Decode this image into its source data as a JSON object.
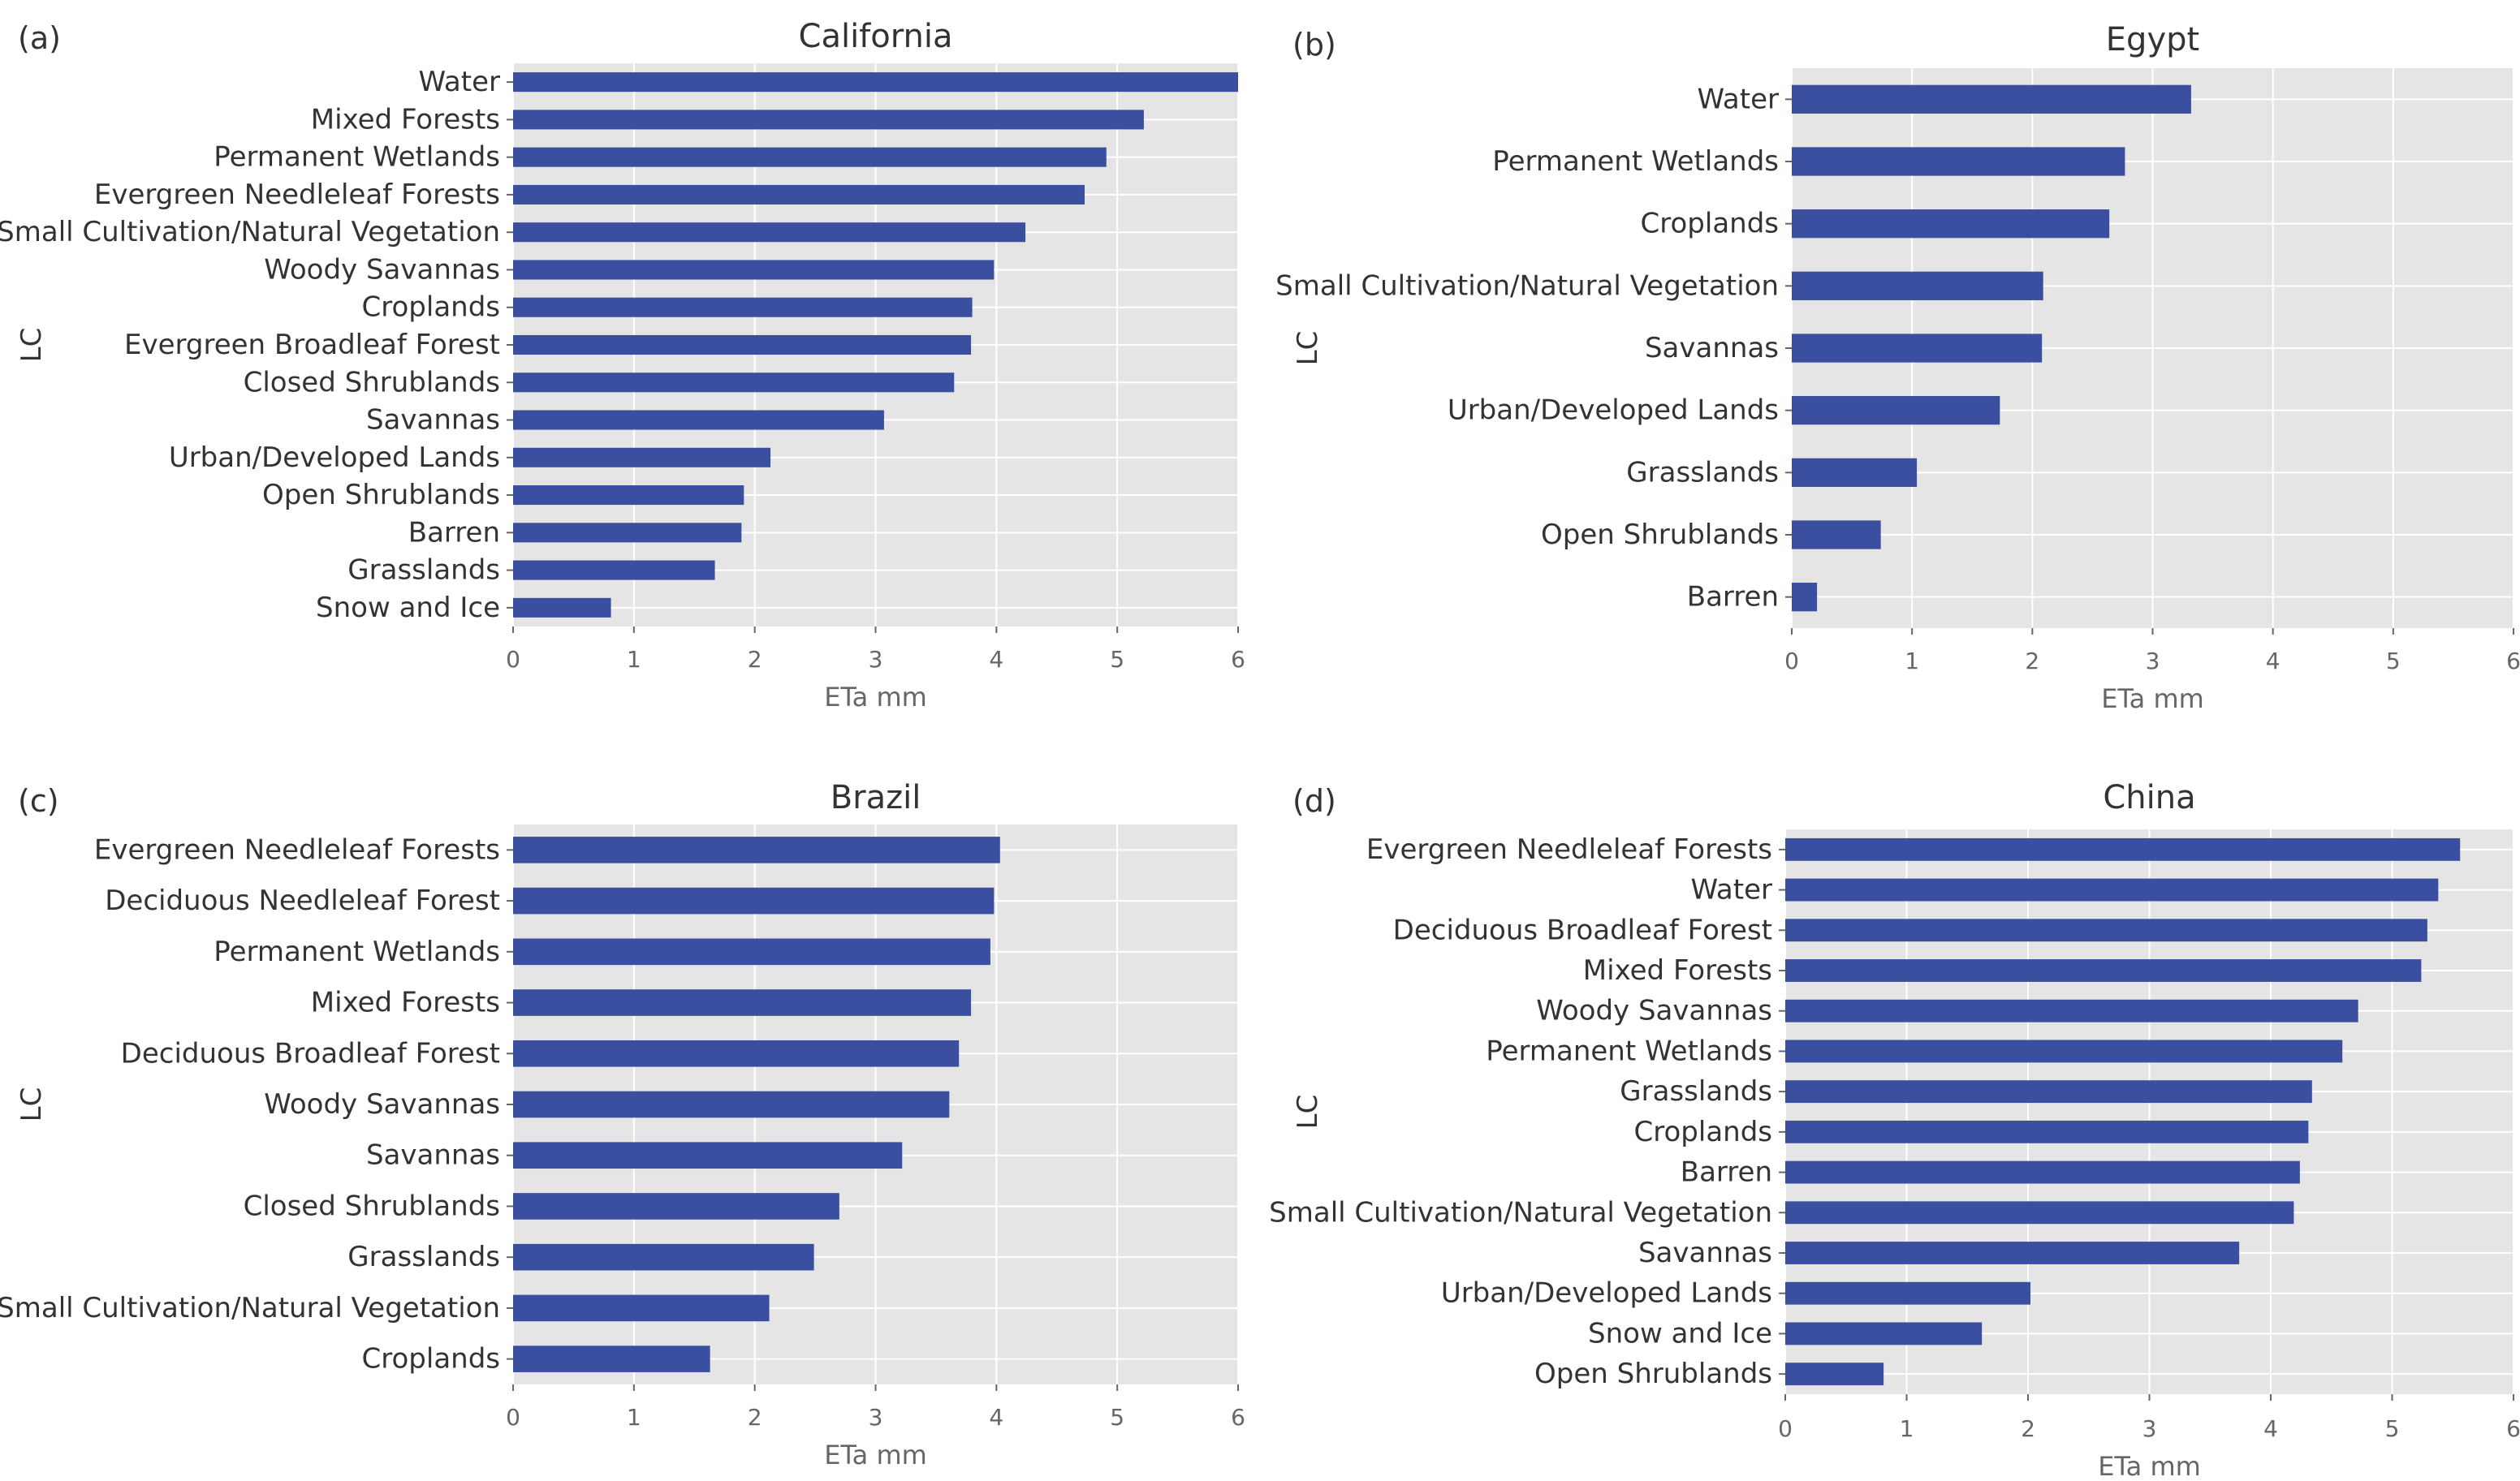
{
  "colors": {
    "bar": "#3b4fa0",
    "plot_bg": "#e5e5e5",
    "grid": "#ffffff",
    "text": "#333333",
    "tick_text": "#666666"
  },
  "chart_data": [
    {
      "panel": "(a)",
      "type": "bar",
      "orientation": "horizontal",
      "title": "California",
      "xlabel": "ETa mm",
      "ylabel": "LC",
      "xlim": [
        0,
        6
      ],
      "xticks": [
        "0",
        "1",
        "2",
        "3",
        "4",
        "5",
        "6"
      ],
      "grid": true,
      "categories": [
        "Water",
        "Mixed Forests",
        "Permanent Wetlands",
        "Evergreen Needleleaf Forests",
        "Small Cultivation/Natural Vegetation",
        "Woody Savannas",
        "Croplands",
        "Evergreen Broadleaf Forest",
        "Closed Shrublands",
        "Savannas",
        "Urban/Developed Lands",
        "Open Shrublands",
        "Barren",
        "Grasslands",
        "Snow and Ice"
      ],
      "values": [
        6.0,
        5.22,
        4.91,
        4.73,
        4.24,
        3.98,
        3.8,
        3.79,
        3.65,
        3.07,
        2.13,
        1.91,
        1.89,
        1.67,
        0.81
      ]
    },
    {
      "panel": "(b)",
      "type": "bar",
      "orientation": "horizontal",
      "title": "Egypt",
      "xlabel": "ETa mm",
      "ylabel": "LC",
      "xlim": [
        0,
        6
      ],
      "xticks": [
        "0",
        "1",
        "2",
        "3",
        "4",
        "5",
        "6"
      ],
      "grid": true,
      "categories": [
        "Water",
        "Permanent Wetlands",
        "Croplands",
        "Small Cultivation/Natural Vegetation",
        "Savannas",
        "Urban/Developed Lands",
        "Grasslands",
        "Open Shrublands",
        "Barren"
      ],
      "values": [
        3.32,
        2.77,
        2.64,
        2.09,
        2.08,
        1.73,
        1.04,
        0.74,
        0.21
      ]
    },
    {
      "panel": "(c)",
      "type": "bar",
      "orientation": "horizontal",
      "title": "Brazil",
      "xlabel": "ETa mm",
      "ylabel": "LC",
      "xlim": [
        0,
        6
      ],
      "xticks": [
        "0",
        "1",
        "2",
        "3",
        "4",
        "5",
        "6"
      ],
      "grid": true,
      "categories": [
        "Evergreen Needleleaf Forests",
        "Deciduous Needleleaf Forest",
        "Permanent Wetlands",
        "Mixed Forests",
        "Deciduous Broadleaf Forest",
        "Woody Savannas",
        "Savannas",
        "Closed Shrublands",
        "Grasslands",
        "Small Cultivation/Natural Vegetation",
        "Croplands"
      ],
      "values": [
        4.03,
        3.98,
        3.95,
        3.79,
        3.69,
        3.61,
        3.22,
        2.7,
        2.49,
        2.12,
        1.63
      ]
    },
    {
      "panel": "(d)",
      "type": "bar",
      "orientation": "horizontal",
      "title": "China",
      "xlabel": "ETa mm",
      "ylabel": "LC",
      "xlim": [
        0,
        6
      ],
      "xticks": [
        "0",
        "1",
        "2",
        "3",
        "4",
        "5",
        "6"
      ],
      "grid": true,
      "categories": [
        "Evergreen Needleleaf Forests",
        "Water",
        "Deciduous Broadleaf Forest",
        "Mixed Forests",
        "Woody Savannas",
        "Permanent Wetlands",
        "Grasslands",
        "Croplands",
        "Barren",
        "Small Cultivation/Natural Vegetation",
        "Savannas",
        "Urban/Developed Lands",
        "Snow and Ice",
        "Open Shrublands"
      ],
      "values": [
        5.56,
        5.38,
        5.29,
        5.24,
        4.72,
        4.59,
        4.34,
        4.31,
        4.24,
        4.19,
        3.74,
        2.02,
        1.62,
        0.81
      ]
    }
  ]
}
